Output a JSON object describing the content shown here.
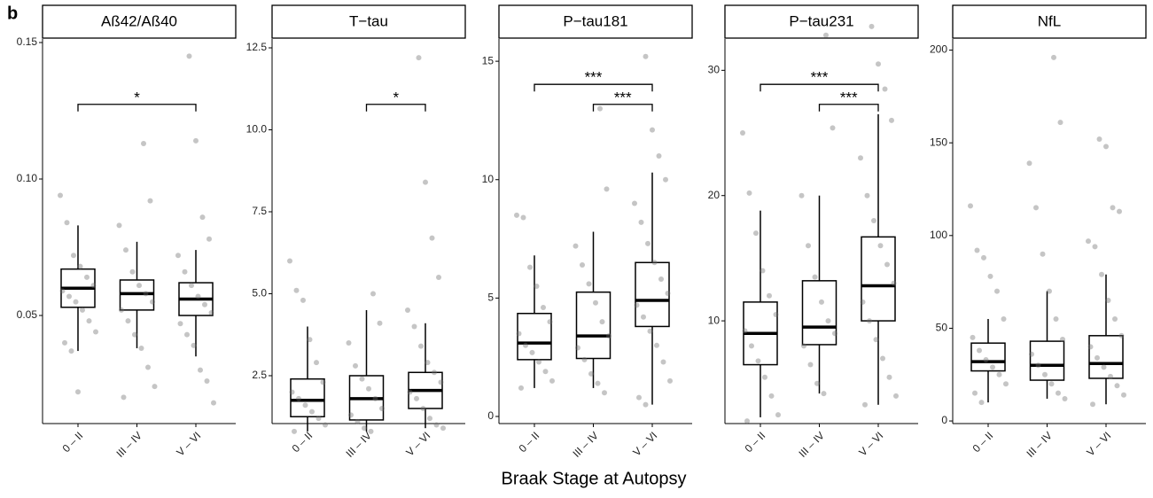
{
  "panel_label": "b",
  "x_label": "Braak Stage at Autopsy",
  "chart_data": [
    {
      "type": "box",
      "title": "Aß42/Aß40",
      "categories": [
        "0 – II",
        "III – IV",
        "V – VI"
      ],
      "ylim": [
        0.0104,
        0.1513
      ],
      "yticks": [
        {
          "value": 0.05,
          "label": "0.05"
        },
        {
          "value": 0.1,
          "label": "0.10"
        },
        {
          "value": 0.15,
          "label": "0.15"
        }
      ],
      "boxes": [
        {
          "min": 0.037,
          "q1": 0.053,
          "median": 0.06,
          "q3": 0.067,
          "max": 0.083
        },
        {
          "min": 0.038,
          "q1": 0.052,
          "median": 0.058,
          "q3": 0.063,
          "max": 0.077
        },
        {
          "min": 0.035,
          "q1": 0.05,
          "median": 0.056,
          "q3": 0.062,
          "max": 0.074
        }
      ],
      "points": [
        [
          0.094,
          0.084,
          0.072,
          0.068,
          0.064,
          0.061,
          0.059,
          0.057,
          0.055,
          0.052,
          0.048,
          0.044,
          0.04,
          0.037,
          0.022
        ],
        [
          0.113,
          0.092,
          0.083,
          0.074,
          0.066,
          0.061,
          0.058,
          0.055,
          0.052,
          0.048,
          0.043,
          0.038,
          0.031,
          0.024,
          0.02
        ],
        [
          0.145,
          0.114,
          0.086,
          0.078,
          0.072,
          0.066,
          0.061,
          0.057,
          0.054,
          0.051,
          0.047,
          0.043,
          0.039,
          0.03,
          0.026,
          0.018
        ]
      ],
      "annotations": [
        {
          "from": 0,
          "to": 2,
          "label": "*"
        }
      ]
    },
    {
      "type": "box",
      "title": "T−tau",
      "categories": [
        "0 – II",
        "III – IV",
        "V – VI"
      ],
      "ylim": [
        1.04,
        12.77
      ],
      "yticks": [
        2.5,
        {
          "value": 5,
          "label": "5.0"
        },
        7.5,
        {
          "value": 10,
          "label": "10.0"
        },
        12.5
      ],
      "boxes": [
        {
          "min": 0.8,
          "q1": 1.25,
          "median": 1.75,
          "q3": 2.4,
          "max": 4.0
        },
        {
          "min": 0.8,
          "q1": 1.15,
          "median": 1.8,
          "q3": 2.5,
          "max": 4.5
        },
        {
          "min": 0.9,
          "q1": 1.5,
          "median": 2.05,
          "q3": 2.6,
          "max": 4.1
        }
      ],
      "points": [
        [
          6.0,
          5.1,
          4.8,
          3.6,
          2.9,
          2.3,
          2.0,
          1.8,
          1.6,
          1.4,
          1.2,
          1.0,
          0.8
        ],
        [
          5.0,
          4.1,
          3.5,
          2.8,
          2.4,
          2.1,
          1.8,
          1.5,
          1.3,
          1.1,
          0.9,
          0.8
        ],
        [
          12.2,
          8.4,
          6.7,
          5.5,
          4.5,
          4.0,
          3.4,
          2.9,
          2.6,
          2.3,
          2.0,
          1.8,
          1.5,
          1.2,
          1.0,
          0.9
        ]
      ],
      "annotations": [
        {
          "from": 1,
          "to": 2,
          "label": "*"
        }
      ]
    },
    {
      "type": "box",
      "title": "P−tau181",
      "categories": [
        "0 – II",
        "III – IV",
        "V – VI"
      ],
      "ylim": [
        -0.3,
        15.94
      ],
      "yticks": [
        0,
        5,
        10,
        15
      ],
      "boxes": [
        {
          "min": 1.2,
          "q1": 2.4,
          "median": 3.1,
          "q3": 4.35,
          "max": 6.8
        },
        {
          "min": 1.2,
          "q1": 2.45,
          "median": 3.4,
          "q3": 5.25,
          "max": 7.8
        },
        {
          "min": 0.5,
          "q1": 3.8,
          "median": 4.9,
          "q3": 6.5,
          "max": 10.3
        }
      ],
      "points": [
        [
          8.5,
          8.4,
          6.3,
          5.5,
          4.6,
          4.0,
          3.5,
          3.0,
          2.7,
          2.3,
          1.9,
          1.5,
          1.2
        ],
        [
          13.0,
          9.6,
          7.2,
          6.4,
          5.6,
          4.8,
          4.0,
          3.4,
          2.9,
          2.4,
          1.8,
          1.4,
          1.0
        ],
        [
          15.2,
          12.1,
          11.0,
          10.0,
          9.0,
          8.2,
          7.3,
          6.5,
          5.8,
          5.2,
          4.7,
          4.2,
          3.6,
          3.0,
          2.3,
          1.5,
          0.8,
          0.5
        ]
      ],
      "annotations": [
        {
          "from": 0,
          "to": 2,
          "label": "***"
        },
        {
          "from": 1,
          "to": 2,
          "label": "***"
        }
      ]
    },
    {
      "type": "box",
      "title": "P−tau231",
      "categories": [
        "0 – II",
        "III – IV",
        "V – VI"
      ],
      "ylim": [
        1.8,
        32.5
      ],
      "yticks": [
        10,
        20,
        30
      ],
      "boxes": [
        {
          "min": 2.3,
          "q1": 6.5,
          "median": 9.0,
          "q3": 11.5,
          "max": 18.8
        },
        {
          "min": 4.2,
          "q1": 8.1,
          "median": 9.5,
          "q3": 13.2,
          "max": 20.0
        },
        {
          "min": 3.3,
          "q1": 10.0,
          "median": 12.8,
          "q3": 16.7,
          "max": 26.5
        }
      ],
      "points": [
        [
          25.0,
          20.2,
          17.0,
          14.0,
          12.0,
          10.5,
          9.2,
          8.0,
          6.8,
          5.5,
          4.0,
          2.5,
          2.0
        ],
        [
          32.8,
          25.4,
          20.0,
          16.0,
          13.5,
          11.5,
          10.0,
          9.0,
          8.0,
          6.5,
          5.0,
          4.2
        ],
        [
          33.5,
          30.5,
          28.5,
          26.0,
          23.0,
          20.0,
          18.0,
          16.0,
          14.5,
          13.0,
          11.5,
          10.0,
          8.5,
          7.0,
          5.5,
          4.0,
          3.3
        ]
      ],
      "annotations": [
        {
          "from": 0,
          "to": 2,
          "label": "***"
        },
        {
          "from": 1,
          "to": 2,
          "label": "***"
        }
      ]
    },
    {
      "type": "box",
      "title": "NfL",
      "categories": [
        "0 – II",
        "III – IV",
        "V – VI"
      ],
      "ylim": [
        -1.4,
        206
      ],
      "yticks": [
        0,
        50,
        100,
        150,
        200
      ],
      "boxes": [
        {
          "min": 10,
          "q1": 27,
          "median": 32,
          "q3": 42,
          "max": 55
        },
        {
          "min": 12,
          "q1": 22,
          "median": 30,
          "q3": 43,
          "max": 70
        },
        {
          "min": 9,
          "q1": 23,
          "median": 31,
          "q3": 46,
          "max": 79
        }
      ],
      "points": [
        [
          116,
          92,
          88,
          78,
          70,
          55,
          45,
          38,
          33,
          29,
          25,
          20,
          15,
          10
        ],
        [
          196,
          161,
          139,
          115,
          90,
          70,
          55,
          44,
          36,
          30,
          25,
          20,
          15,
          12
        ],
        [
          152,
          148,
          115,
          113,
          97,
          94,
          79,
          65,
          55,
          46,
          40,
          34,
          29,
          24,
          19,
          14,
          9
        ]
      ],
      "annotations": []
    }
  ]
}
